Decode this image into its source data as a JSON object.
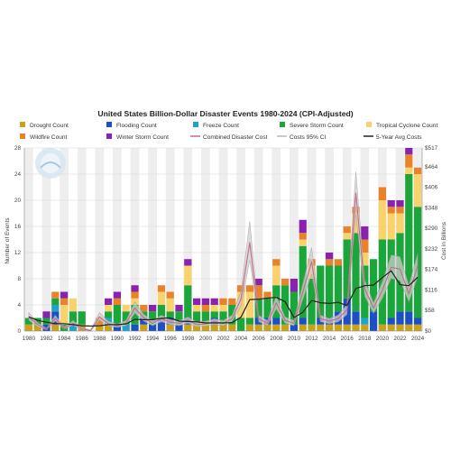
{
  "chart_data": {
    "type": "bar",
    "title": "United States Billion-Dollar Disaster Events 1980-2024 (CPI-Adjusted)",
    "ylabel_left": "Number of Events",
    "ylabel_right": "Cost in Billions",
    "ylim_left": [
      0,
      28
    ],
    "ylim_right": [
      0,
      517
    ],
    "yticks_left": [
      "0",
      "4",
      "8",
      "12",
      "16",
      "20",
      "24",
      "28"
    ],
    "yticks_right": [
      "$0",
      "$58",
      "$116",
      "$174",
      "$232",
      "$290",
      "$348",
      "$406",
      "$464",
      "$517"
    ],
    "xticks": [
      "1980",
      "1982",
      "1984",
      "1986",
      "1988",
      "1990",
      "1992",
      "1994",
      "1996",
      "1998",
      "2000",
      "2002",
      "2004",
      "2006",
      "2008",
      "2010",
      "2012",
      "2014",
      "2016",
      "2018",
      "2020",
      "2022",
      "2024"
    ],
    "legend_position": "top",
    "legend": [
      {
        "label": "Drought Count",
        "color": "#c8a21a",
        "shape": "square"
      },
      {
        "label": "Flooding Count",
        "color": "#1c4fc4",
        "shape": "square"
      },
      {
        "label": "Freeze Count",
        "color": "#1fa3c9",
        "shape": "square"
      },
      {
        "label": "Severe Storm Count",
        "color": "#1aa63a",
        "shape": "square"
      },
      {
        "label": "Tropical Cyclone Count",
        "color": "#f9d26b",
        "shape": "square"
      },
      {
        "label": "Wildfire Count",
        "color": "#e8832a",
        "shape": "square"
      },
      {
        "label": "Winter Storm Count",
        "color": "#8a22b0",
        "shape": "square"
      },
      {
        "label": "Combined Disaster Cost",
        "color": "#c96a8a",
        "shape": "line"
      },
      {
        "label": "Costs 95% CI",
        "color": "#b7b7b7",
        "shape": "line"
      },
      {
        "label": "5-Year Avg Costs",
        "color": "#222222",
        "shape": "line"
      }
    ],
    "categories": [
      1980,
      1981,
      1982,
      1983,
      1984,
      1985,
      1986,
      1987,
      1988,
      1989,
      1990,
      1991,
      1992,
      1993,
      1994,
      1995,
      1996,
      1997,
      1998,
      1999,
      2000,
      2001,
      2002,
      2003,
      2004,
      2005,
      2006,
      2007,
      2008,
      2009,
      2010,
      2011,
      2012,
      2013,
      2014,
      2015,
      2016,
      2017,
      2018,
      2019,
      2020,
      2021,
      2022,
      2023,
      2024
    ],
    "series": [
      {
        "name": "Drought Count",
        "values": [
          1,
          1,
          0,
          1,
          0,
          0,
          1,
          0,
          1,
          1,
          0,
          0,
          0,
          1,
          0,
          0,
          1,
          0,
          1,
          1,
          1,
          1,
          1,
          1,
          0,
          1,
          1,
          1,
          1,
          1,
          0,
          1,
          1,
          1,
          1,
          1,
          1,
          1,
          1,
          0,
          1,
          1,
          1,
          1,
          1
        ]
      },
      {
        "name": "Flooding Count",
        "values": [
          0,
          0,
          1,
          2,
          0,
          0,
          0,
          0,
          0,
          0,
          1,
          0,
          1,
          1,
          1,
          2,
          1,
          1,
          1,
          0,
          0,
          1,
          0,
          0,
          0,
          0,
          1,
          1,
          1,
          0,
          1,
          1,
          0,
          1,
          1,
          2,
          4,
          2,
          0,
          3,
          0,
          1,
          2,
          2,
          1
        ]
      },
      {
        "name": "Freeze Count",
        "values": [
          0,
          0,
          0,
          1,
          0,
          1,
          0,
          0,
          0,
          1,
          0,
          1,
          0,
          0,
          0,
          0,
          0,
          0,
          0,
          0,
          0,
          0,
          0,
          0,
          0,
          0,
          0,
          0,
          0,
          0,
          0,
          0,
          0,
          0,
          0,
          0,
          0,
          0,
          1,
          0,
          0,
          0,
          0,
          0,
          0
        ]
      },
      {
        "name": "Severe Storm Count",
        "values": [
          1,
          1,
          1,
          1,
          1,
          2,
          2,
          0,
          0,
          1,
          3,
          2,
          3,
          1,
          2,
          2,
          1,
          2,
          5,
          2,
          2,
          1,
          2,
          3,
          2,
          1,
          3,
          3,
          5,
          6,
          5,
          11,
          7,
          8,
          8,
          7,
          9,
          12,
          8,
          8,
          13,
          12,
          12,
          21,
          17
        ]
      },
      {
        "name": "Tropical Cyclone Count",
        "values": [
          0,
          0,
          0,
          0,
          3,
          2,
          0,
          0,
          0,
          1,
          0,
          1,
          1,
          0,
          0,
          2,
          2,
          0,
          3,
          1,
          0,
          1,
          1,
          0,
          4,
          4,
          0,
          0,
          3,
          0,
          0,
          1,
          2,
          0,
          0,
          0,
          1,
          3,
          2,
          0,
          6,
          4,
          3,
          1,
          5
        ]
      },
      {
        "name": "Wildfire Count",
        "values": [
          0,
          0,
          0,
          1,
          1,
          0,
          0,
          0,
          1,
          0,
          1,
          0,
          1,
          1,
          0,
          1,
          1,
          0,
          0,
          0,
          1,
          0,
          1,
          1,
          1,
          1,
          2,
          1,
          1,
          1,
          0,
          1,
          1,
          0,
          1,
          1,
          1,
          1,
          2,
          0,
          2,
          1,
          1,
          2,
          1
        ]
      },
      {
        "name": "Winter Storm Count",
        "values": [
          0,
          0,
          1,
          0,
          1,
          0,
          0,
          0,
          0,
          1,
          1,
          0,
          1,
          0,
          1,
          0,
          0,
          1,
          1,
          1,
          1,
          1,
          0,
          0,
          0,
          0,
          1,
          0,
          0,
          0,
          2,
          2,
          0,
          0,
          1,
          0,
          0,
          0,
          2,
          0,
          0,
          1,
          1,
          1,
          0
        ]
      },
      {
        "name": "Combined Disaster Cost",
        "values": [
          40,
          18,
          5,
          36,
          8,
          22,
          6,
          1,
          40,
          20,
          15,
          22,
          65,
          38,
          22,
          35,
          25,
          22,
          30,
          18,
          20,
          26,
          22,
          35,
          90,
          250,
          35,
          22,
          80,
          30,
          22,
          110,
          195,
          35,
          28,
          35,
          60,
          390,
          120,
          65,
          115,
          180,
          175,
          105,
          185
        ]
      },
      {
        "name": "5-Year Avg Costs",
        "values": [
          40,
          30,
          25,
          21,
          21,
          18,
          15,
          14,
          15,
          18,
          18,
          20,
          33,
          32,
          32,
          36,
          37,
          28,
          27,
          26,
          23,
          23,
          23,
          24,
          39,
          89,
          90,
          93,
          95,
          83,
          38,
          53,
          86,
          80,
          78,
          81,
          72,
          120,
          128,
          130,
          151,
          170,
          131,
          128,
          152
        ]
      }
    ],
    "ci_upper": [
      52,
      24,
      8,
      45,
      12,
      30,
      10,
      3,
      52,
      28,
      20,
      30,
      82,
      48,
      30,
      45,
      32,
      30,
      40,
      26,
      28,
      35,
      30,
      45,
      112,
      310,
      45,
      30,
      100,
      40,
      30,
      135,
      235,
      45,
      36,
      45,
      75,
      450,
      145,
      80,
      140,
      215,
      210,
      130,
      220
    ],
    "ci_lower": [
      30,
      12,
      3,
      28,
      5,
      16,
      3,
      0,
      30,
      14,
      10,
      15,
      50,
      28,
      15,
      26,
      18,
      15,
      22,
      12,
      14,
      18,
      15,
      26,
      70,
      200,
      26,
      15,
      62,
      22,
      15,
      88,
      160,
      26,
      20,
      26,
      46,
      330,
      98,
      50,
      92,
      148,
      142,
      82,
      152
    ]
  }
}
